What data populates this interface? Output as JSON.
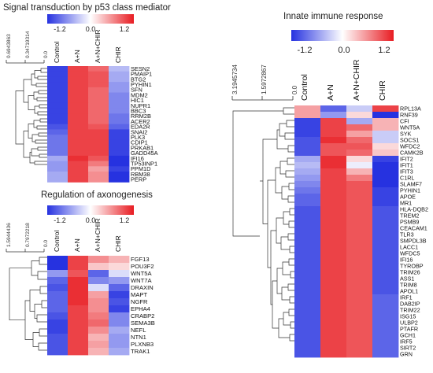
{
  "colorbar": {
    "low_color": "#2632e0",
    "mid_color": "#ffffff",
    "high_color": "#e81c22"
  },
  "panels": [
    {
      "id": "p53",
      "title": "Signal transduction by  p53 class mediator",
      "scale_ticks": [
        "-1.2",
        "0.0",
        "1.2"
      ],
      "dendro_ticks": [
        "0.6943863",
        "0.34719314",
        "0.0"
      ],
      "columns": [
        "Control",
        "A+N",
        "A+N+CHIR",
        "CHIR"
      ],
      "genes": [
        "SESN2",
        "PMAIP1",
        "BTG2",
        "PYHIN1",
        "SFN",
        "MDM2",
        "HIC1",
        "NUPR1",
        "BBC3",
        "RRM2B",
        "ACER2",
        "EDA2R",
        "SNAI2",
        "PLK3",
        "CDIP1",
        "PRKAB1",
        "GADD45A",
        "IFI16",
        "TP53INP1",
        "PPM1D",
        "RBM38",
        "PERP"
      ],
      "values": [
        [
          -1.1,
          1.0,
          0.8,
          -0.4
        ],
        [
          -1.1,
          1.0,
          0.9,
          -0.5
        ],
        [
          -1.1,
          1.0,
          0.9,
          -0.5
        ],
        [
          -1.1,
          1.0,
          0.9,
          -0.6
        ],
        [
          -1.1,
          1.0,
          0.8,
          -0.6
        ],
        [
          -1.1,
          1.0,
          0.8,
          -0.7
        ],
        [
          -1.1,
          1.0,
          0.8,
          -0.7
        ],
        [
          -1.1,
          1.0,
          0.8,
          -0.7
        ],
        [
          -1.1,
          1.0,
          0.8,
          -0.7
        ],
        [
          -1.1,
          1.0,
          0.8,
          -0.8
        ],
        [
          -1.1,
          1.0,
          0.8,
          -0.8
        ],
        [
          -1.0,
          1.0,
          0.9,
          -0.9
        ],
        [
          -0.9,
          1.0,
          1.0,
          -1.1
        ],
        [
          -0.8,
          1.0,
          1.0,
          -1.1
        ],
        [
          -0.8,
          1.0,
          1.0,
          -1.1
        ],
        [
          -0.8,
          1.0,
          1.0,
          -1.1
        ],
        [
          -0.8,
          1.0,
          1.0,
          -1.1
        ],
        [
          -0.5,
          1.1,
          0.9,
          -1.2
        ],
        [
          -0.6,
          1.0,
          0.7,
          -1.2
        ],
        [
          -0.6,
          1.0,
          0.5,
          -1.1
        ],
        [
          -0.5,
          1.0,
          0.6,
          -1.2
        ],
        [
          -0.5,
          1.0,
          0.6,
          -1.2
        ]
      ]
    },
    {
      "id": "axon",
      "title": "Regulation of axonogenesis",
      "scale_ticks": [
        "-1.2",
        "0.0",
        "1.2"
      ],
      "dendro_ticks": [
        "1.5944436",
        "0.7972218",
        "0.0"
      ],
      "columns": [
        "Control",
        "A+N",
        "A+N+CHIR",
        "CHIR"
      ],
      "genes": [
        "FGF13",
        "POU3F2",
        "WNT5A",
        "WNT7A",
        "DRAXIN",
        "MAPT",
        "NGFR",
        "EPHA4",
        "CRABP2",
        "SEMA3B",
        "NEFL",
        "NTN1",
        "PLXNB3",
        "TRAK1"
      ],
      "values": [
        [
          -1.2,
          1.0,
          0.6,
          0.4
        ],
        [
          -1.2,
          1.0,
          0.3,
          0.2
        ],
        [
          -0.6,
          0.9,
          -0.9,
          -0.2
        ],
        [
          -0.9,
          1.1,
          -0.7,
          -0.6
        ],
        [
          -1.0,
          1.1,
          -0.2,
          -0.9
        ],
        [
          -0.9,
          1.1,
          0.5,
          -1.1
        ],
        [
          -0.9,
          1.1,
          0.6,
          -1.0
        ],
        [
          -0.9,
          1.0,
          0.6,
          -1.1
        ],
        [
          -1.0,
          1.0,
          0.7,
          -0.7
        ],
        [
          -1.1,
          1.0,
          0.8,
          -0.7
        ],
        [
          -1.1,
          1.0,
          0.6,
          -0.5
        ],
        [
          -1.0,
          1.0,
          0.4,
          -0.6
        ],
        [
          -1.0,
          1.0,
          0.5,
          -0.6
        ],
        [
          -1.0,
          1.0,
          0.4,
          -0.5
        ]
      ]
    },
    {
      "id": "immune",
      "title": "Innate immune response",
      "scale_ticks": [
        "-1.2",
        "0.0",
        "1.2"
      ],
      "dendro_ticks": [
        "3.1945734",
        "1.5972867",
        "0.0"
      ],
      "columns": [
        "Control",
        "A+N",
        "A+N+CHIR",
        "CHIR"
      ],
      "genes": [
        "RPL13A",
        "RNF39",
        "CFI",
        "WNT5A",
        "SYK",
        "SOCS1",
        "WFDC2",
        "CAMK2B",
        "IFIT2",
        "IFIT1",
        "IFIT3",
        "C1RL",
        "SLAMF7",
        "PYHIN1",
        "APOE",
        "MR1",
        "HLA-DQB2",
        "TREM2",
        "PSMB9",
        "CEACAM1",
        "TLR3",
        "SMPDL3B",
        "LACC1",
        "WFDC5",
        "IFI16",
        "TYROBP",
        "TRIM26",
        "ASS1",
        "TRIM8",
        "APOL1",
        "IRF1",
        "DAB2IP",
        "TRIM22",
        "ISG15",
        "ULBP2",
        "PTAFR",
        "GCH1",
        "IRF5",
        "SIRT2",
        "GRN"
      ],
      "values": [
        [
          0.5,
          -0.9,
          -0.3,
          1.0
        ],
        [
          0.5,
          -0.6,
          0.2,
          -1.2
        ],
        [
          -1.1,
          1.0,
          -0.5,
          0.4
        ],
        [
          -1.1,
          1.0,
          0.8,
          0.4
        ],
        [
          -1.1,
          1.0,
          0.5,
          -0.3
        ],
        [
          -1.0,
          1.1,
          0.8,
          -0.3
        ],
        [
          -1.0,
          0.9,
          0.9,
          0.2
        ],
        [
          -1.0,
          0.9,
          0.8,
          0.3
        ],
        [
          -0.5,
          1.1,
          0.2,
          -1.1
        ],
        [
          -0.4,
          1.1,
          -0.1,
          -1.2
        ],
        [
          -0.5,
          1.0,
          0.4,
          -1.2
        ],
        [
          -0.6,
          1.0,
          0.7,
          -1.2
        ],
        [
          -0.7,
          1.0,
          0.9,
          -1.2
        ],
        [
          -0.8,
          1.0,
          0.9,
          -1.1
        ],
        [
          -0.9,
          1.0,
          0.9,
          -1.1
        ],
        [
          -0.9,
          1.0,
          0.9,
          -1.1
        ],
        [
          -1.0,
          1.0,
          0.9,
          -1.0
        ],
        [
          -1.0,
          1.0,
          0.9,
          -1.0
        ],
        [
          -1.0,
          1.0,
          0.9,
          -1.0
        ],
        [
          -1.0,
          1.0,
          0.9,
          -1.0
        ],
        [
          -1.0,
          1.0,
          0.9,
          -1.0
        ],
        [
          -1.0,
          1.0,
          0.9,
          -1.0
        ],
        [
          -1.0,
          1.0,
          0.9,
          -1.0
        ],
        [
          -1.0,
          1.0,
          0.9,
          -1.0
        ],
        [
          -1.0,
          1.0,
          0.9,
          -1.0
        ],
        [
          -1.0,
          1.0,
          0.9,
          -1.0
        ],
        [
          -1.0,
          1.0,
          0.9,
          -1.0
        ],
        [
          -1.0,
          1.0,
          0.9,
          -1.0
        ],
        [
          -1.0,
          1.0,
          0.9,
          -1.0
        ],
        [
          -1.0,
          1.0,
          0.9,
          -1.0
        ],
        [
          -1.0,
          1.0,
          0.9,
          -0.9
        ],
        [
          -1.0,
          1.0,
          0.9,
          -0.9
        ],
        [
          -1.0,
          1.0,
          0.9,
          -0.9
        ],
        [
          -1.0,
          1.0,
          0.9,
          -0.9
        ],
        [
          -1.0,
          1.0,
          0.9,
          -0.9
        ],
        [
          -1.0,
          1.0,
          0.9,
          -0.9
        ],
        [
          -1.0,
          1.0,
          0.9,
          -0.9
        ],
        [
          -1.0,
          1.0,
          0.9,
          -0.9
        ],
        [
          -1.0,
          1.0,
          0.9,
          -0.9
        ],
        [
          -1.0,
          1.0,
          0.9,
          -0.9
        ]
      ]
    }
  ]
}
